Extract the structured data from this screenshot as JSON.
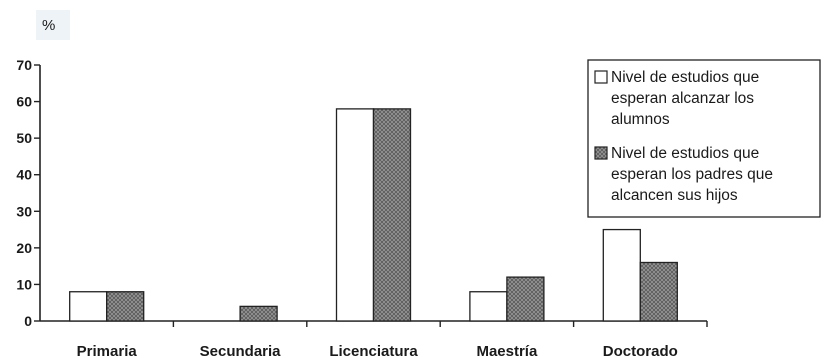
{
  "chart_data": {
    "type": "bar",
    "unit_label": "%",
    "categories": [
      "Primaria",
      "Secundaria",
      "Licenciatura",
      "Maestría",
      "Doctorado"
    ],
    "series": [
      {
        "name": "Nivel de estudios que esperan alcanzar los alumnos",
        "legend_lines": [
          "Nivel de estudios que",
          "esperan alcanzar los",
          "alumnos"
        ],
        "values": [
          8,
          0,
          58,
          8,
          25
        ],
        "fill": "plain-white"
      },
      {
        "name": "Nivel de estudios que esperan los padres que alcancen sus hijos",
        "legend_lines": [
          "Nivel de estudios que",
          "esperan los padres que",
          "alcancen sus hijos"
        ],
        "values": [
          8,
          4,
          58,
          12,
          16
        ],
        "fill": "gray-crosshatch"
      }
    ],
    "yticks": [
      0,
      10,
      20,
      30,
      40,
      50,
      60,
      70
    ],
    "ylim": [
      0,
      70
    ],
    "legend_position": "top-right",
    "grid": false,
    "colors": {
      "axis": "#222222",
      "series1": "#ffffff",
      "series2": "#8a8a8a"
    }
  }
}
